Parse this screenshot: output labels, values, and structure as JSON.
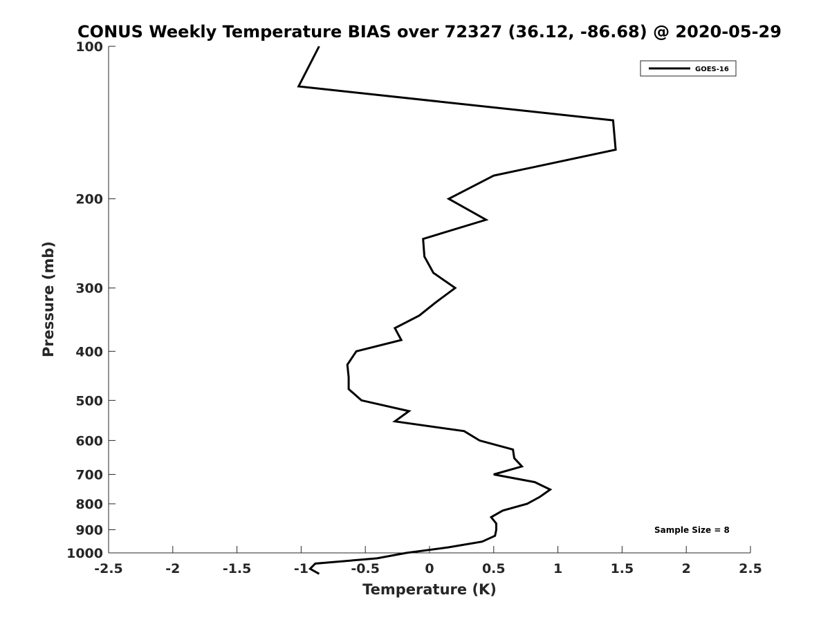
{
  "chart_data": {
    "type": "line",
    "title": "CONUS Weekly Temperature BIAS over 72327 (36.12, -86.68) @ 2020-05-29",
    "xlabel": "Temperature (K)",
    "ylabel": "Pressure (mb)",
    "xlim": [
      -2.5,
      2.5
    ],
    "ylim": [
      100,
      1000
    ],
    "yscale": "log",
    "yreversed": true,
    "xticks": [
      -2.5,
      -2,
      -1.5,
      -1,
      -0.5,
      0,
      0.5,
      1,
      1.5,
      2,
      2.5
    ],
    "xtick_labels": [
      "-2.5",
      "-2",
      "-1.5",
      "-1",
      "-0.5",
      "0",
      "0.5",
      "1",
      "1.5",
      "2",
      "2.5"
    ],
    "yticks": [
      100,
      200,
      300,
      400,
      500,
      600,
      700,
      800,
      900,
      1000
    ],
    "ytick_labels": [
      "100",
      "200",
      "300",
      "400",
      "500",
      "600",
      "700",
      "800",
      "900",
      "1000"
    ],
    "grid": false,
    "legend_position": "top-right",
    "series": [
      {
        "name": "GOES-16",
        "color": "#000000",
        "points": [
          [
            -0.86,
            100
          ],
          [
            -1.02,
            120
          ],
          [
            1.43,
            140
          ],
          [
            1.45,
            160
          ],
          [
            0.5,
            180
          ],
          [
            0.15,
            200
          ],
          [
            0.44,
            220
          ],
          [
            -0.05,
            240
          ],
          [
            -0.04,
            260
          ],
          [
            0.03,
            280
          ],
          [
            0.2,
            300
          ],
          [
            0.05,
            320
          ],
          [
            -0.08,
            340
          ],
          [
            -0.27,
            360
          ],
          [
            -0.22,
            380
          ],
          [
            -0.57,
            400
          ],
          [
            -0.64,
            425
          ],
          [
            -0.63,
            450
          ],
          [
            -0.63,
            475
          ],
          [
            -0.53,
            500
          ],
          [
            -0.16,
            525
          ],
          [
            -0.27,
            550
          ],
          [
            0.27,
            575
          ],
          [
            0.39,
            600
          ],
          [
            0.65,
            625
          ],
          [
            0.66,
            650
          ],
          [
            0.72,
            675
          ],
          [
            0.5,
            700
          ],
          [
            0.82,
            725
          ],
          [
            0.94,
            750
          ],
          [
            0.86,
            775
          ],
          [
            0.76,
            800
          ],
          [
            0.57,
            825
          ],
          [
            0.48,
            850
          ],
          [
            0.52,
            875
          ],
          [
            0.52,
            900
          ],
          [
            0.51,
            925
          ],
          [
            0.41,
            950
          ],
          [
            0.15,
            975
          ],
          [
            -0.18,
            1000
          ],
          [
            -0.41,
            1025
          ],
          [
            -0.89,
            1050
          ],
          [
            -0.93,
            1075
          ],
          [
            -0.86,
            1100
          ]
        ]
      }
    ],
    "annotation": "Sample Size = 8"
  }
}
